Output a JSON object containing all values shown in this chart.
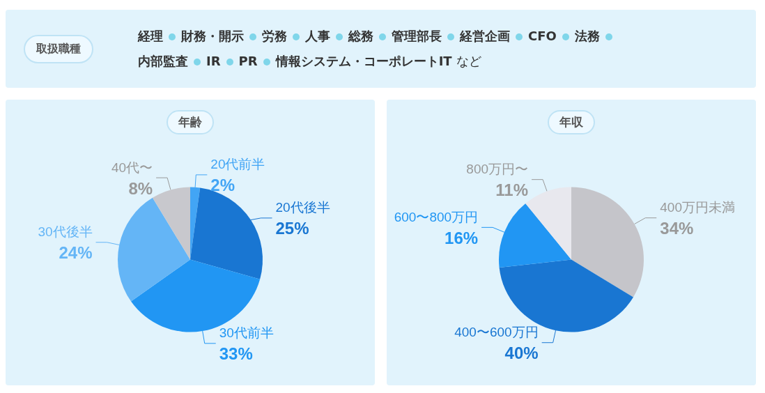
{
  "chart_data": [
    {
      "type": "other",
      "title": "取扱職種",
      "annotations": [
        "経理",
        "財務・開示",
        "労務",
        "人事",
        "総務",
        "管理部長",
        "経営企画",
        "CFO",
        "法務",
        "内部監査",
        "IR",
        "PR",
        "情報システム・コーポレートIT",
        "など"
      ]
    },
    {
      "type": "pie",
      "title": "年齢",
      "categories": [
        "20代前半",
        "20代後半",
        "30代前半",
        "30代後半",
        "40代〜"
      ],
      "values": [
        2,
        25,
        33,
        24,
        8
      ],
      "colors": [
        "#42a5f5",
        "#1976d2",
        "#2196f3",
        "#64b5f6",
        "#c8c8cd"
      ],
      "value_labels": [
        "2%",
        "25%",
        "33%",
        "24%",
        "8%"
      ],
      "legend": false
    },
    {
      "type": "pie",
      "title": "年収",
      "categories": [
        "400万円未満",
        "400〜600万円",
        "600〜800万円",
        "800万円〜"
      ],
      "values": [
        34,
        40,
        16,
        11
      ],
      "colors": [
        "#c5c5ca",
        "#1976d2",
        "#2196f3",
        "#e8e8ee"
      ],
      "value_labels": [
        "34%",
        "40%",
        "16%",
        "11%"
      ],
      "legend": false
    }
  ]
}
